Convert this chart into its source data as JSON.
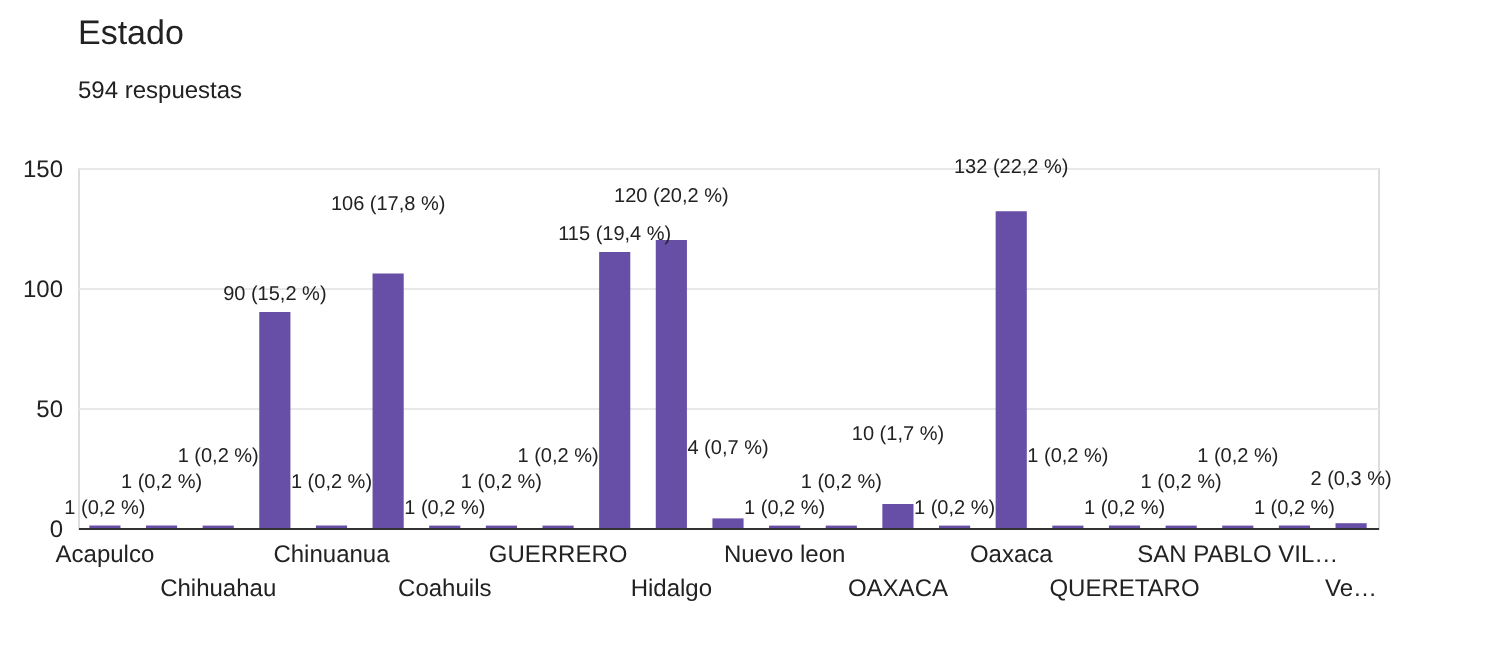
{
  "chart_data": {
    "type": "bar",
    "title": "Estado",
    "subtitle": "594 respuestas",
    "categories": [
      "Acapulco",
      null,
      "Chihuahau",
      null,
      "Chinuanua",
      null,
      "Coahuils",
      null,
      "GUERRERO",
      null,
      "Hidalgo",
      null,
      "Nuevo leon",
      null,
      "OAXACA",
      null,
      "Oaxaca",
      null,
      "QUERETARO",
      null,
      "SAN PABLO VIL…",
      null,
      "Ve…"
    ],
    "values": [
      1,
      1,
      1,
      90,
      1,
      106,
      1,
      1,
      1,
      115,
      120,
      4,
      1,
      1,
      10,
      1,
      132,
      1,
      1,
      1,
      1,
      1,
      2
    ],
    "value_labels": [
      "1 (0,2 %)",
      "1 (0,2 %)",
      "1 (0,2 %)",
      "90 (15,2 %)",
      "1 (0,2 %)",
      "106 (17,8 %)",
      "1 (0,2 %)",
      "1 (0,2 %)",
      "1 (0,2 %)",
      "115 (19,4 %)",
      "120 (20,2 %)",
      "4 (0,7 %)",
      "1 (0,2 %)",
      "1 (0,2 %)",
      "10 (1,7 %)",
      "1 (0,2 %)",
      "132 (22,2 %)",
      "1 (0,2 %)",
      "1 (0,2 %)",
      "1 (0,2 %)",
      "1 (0,2 %)",
      "1 (0,2 %)",
      "2 (0,3 %)"
    ],
    "color": "#674ea7",
    "ylim": [
      0,
      150
    ],
    "yticks": [
      0,
      50,
      100,
      150
    ],
    "grid": "y"
  }
}
